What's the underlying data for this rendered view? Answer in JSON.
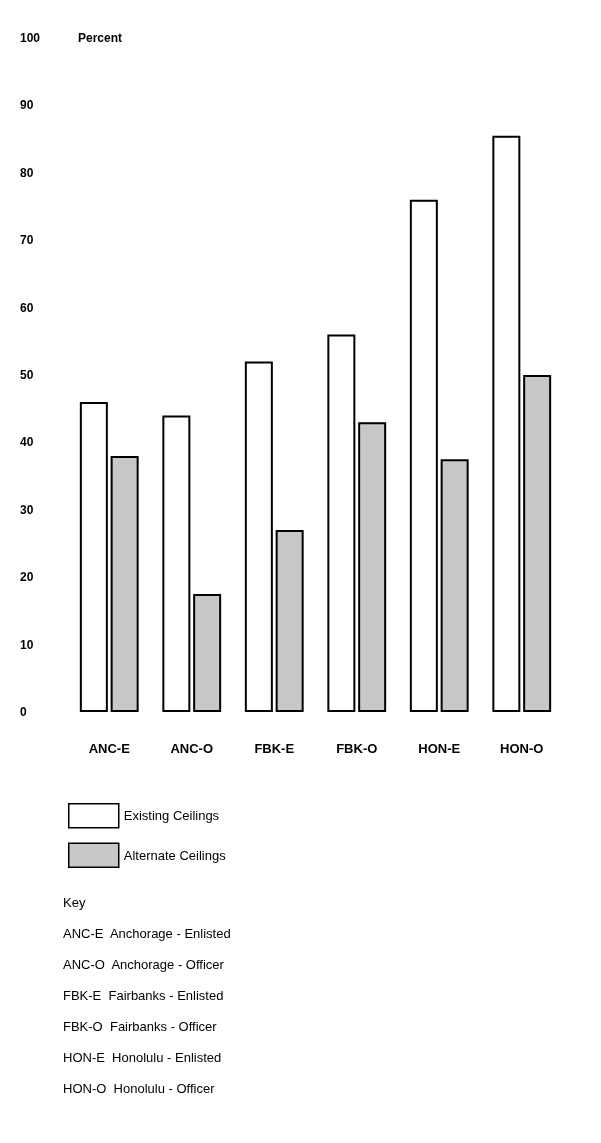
{
  "chart_data": {
    "type": "bar",
    "ylabel": "Percent",
    "categories": [
      "ANC-E",
      "ANC-O",
      "FBK-E",
      "FBK-O",
      "HON-E",
      "HON-O"
    ],
    "series": [
      {
        "name": "Existing Ceilings",
        "color": "#ffffff",
        "values": [
          46,
          44,
          52,
          56,
          76,
          85.5
        ]
      },
      {
        "name": "Alternate Ceilings",
        "color": "#c8c8c8",
        "values": [
          38,
          17.5,
          27,
          43,
          37.5,
          50
        ]
      }
    ],
    "ylim": [
      0,
      100
    ],
    "yticks": [
      0,
      10,
      20,
      30,
      40,
      50,
      60,
      70,
      80,
      90,
      100
    ],
    "grid": false,
    "legend": "bottom left",
    "annotations": [
      "Key",
      "ANC-E  Anchorage - Enlisted",
      "ANC-O  Anchorage - Officer",
      "FBK-E  Fairbanks - Enlisted",
      "FBK-O  Fairbanks - Officer",
      "HON-E  Honolulu - Enlisted",
      "HON-O  Honolulu - Officer"
    ]
  }
}
